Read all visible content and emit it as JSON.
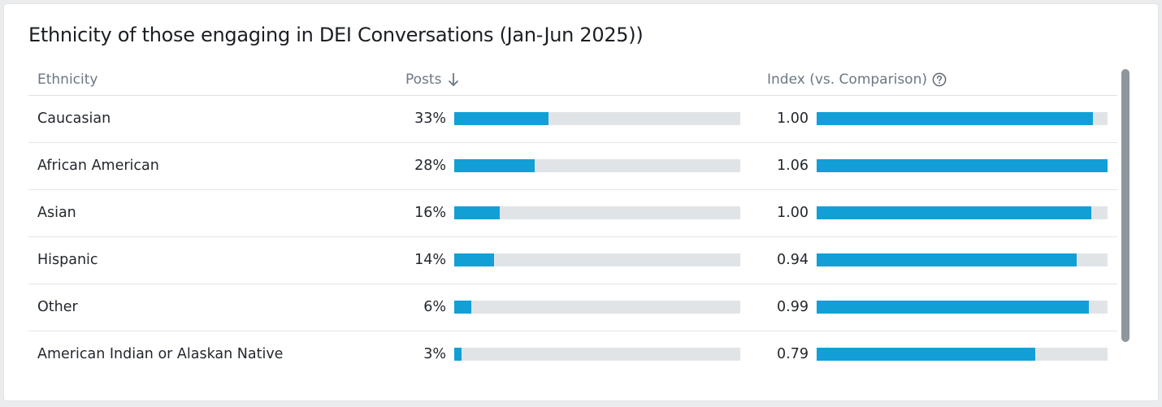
{
  "card": {
    "title": "Ethnicity of those engaging in DEI Conversations (Jan-Jun 2025))"
  },
  "table": {
    "headers": {
      "ethnicity": "Ethnicity",
      "posts": "Posts",
      "posts_sort_icon": "arrow-down-icon",
      "index": "Index (vs. Comparison)",
      "index_help_icon": "question-circle-icon"
    },
    "rows": [
      {
        "label": "Caucasian",
        "posts": "33%",
        "posts_fill": 0.33,
        "index": "1.00",
        "index_fill": 0.95
      },
      {
        "label": "African American",
        "posts": "28%",
        "posts_fill": 0.28,
        "index": "1.06",
        "index_fill": 1.0
      },
      {
        "label": "Asian",
        "posts": "16%",
        "posts_fill": 0.16,
        "index": "1.00",
        "index_fill": 0.945
      },
      {
        "label": "Hispanic",
        "posts": "14%",
        "posts_fill": 0.14,
        "index": "0.94",
        "index_fill": 0.893
      },
      {
        "label": "Other",
        "posts": "6%",
        "posts_fill": 0.06,
        "index": "0.99",
        "index_fill": 0.935
      },
      {
        "label": "American Indian or Alaskan Native",
        "posts": "3%",
        "posts_fill": 0.025,
        "index": "0.79",
        "index_fill": 0.75
      }
    ]
  },
  "colors": {
    "bar_fill": "#129fd6",
    "bar_track": "#e1e4e7",
    "header_text": "#6b7785"
  }
}
